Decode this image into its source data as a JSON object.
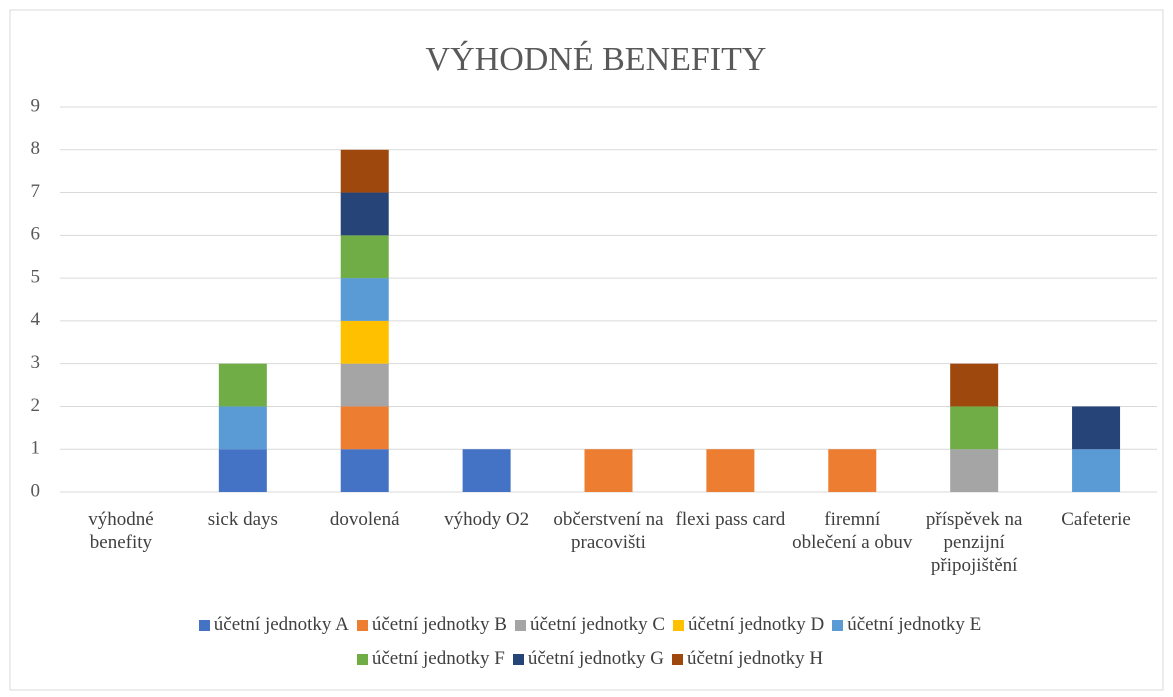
{
  "chart_data": {
    "type": "stacked_bar",
    "title": "VÝHODNÉ BENEFITY",
    "categories": [
      "výhodné benefity",
      "sick days",
      "dovolená",
      "výhody O2",
      "občerstvení na pracovišti",
      "flexi pass card",
      "firemní oblečení a obuv",
      "příspěvek na penzijní připojištění",
      "Cafeterie"
    ],
    "series": [
      {
        "name": "účetní jednotky A",
        "color": "#4472c4",
        "values": [
          0,
          1,
          1,
          1,
          0,
          0,
          0,
          0,
          0
        ]
      },
      {
        "name": "účetní jednotky B",
        "color": "#ed7d31",
        "values": [
          0,
          0,
          1,
          0,
          1,
          1,
          1,
          0,
          0
        ]
      },
      {
        "name": "účetní jednotky C",
        "color": "#a5a5a5",
        "values": [
          0,
          0,
          1,
          0,
          0,
          0,
          0,
          1,
          0
        ]
      },
      {
        "name": "účetní jednotky D",
        "color": "#ffc000",
        "values": [
          0,
          0,
          1,
          0,
          0,
          0,
          0,
          0,
          0
        ]
      },
      {
        "name": "účetní jednotky E",
        "color": "#5b9bd5",
        "values": [
          0,
          1,
          1,
          0,
          0,
          0,
          0,
          0,
          1
        ]
      },
      {
        "name": "účetní jednotky F",
        "color": "#70ad47",
        "values": [
          0,
          1,
          1,
          0,
          0,
          0,
          0,
          1,
          0
        ]
      },
      {
        "name": "účetní jednotky G",
        "color": "#264478",
        "values": [
          0,
          0,
          1,
          0,
          0,
          0,
          0,
          0,
          1
        ]
      },
      {
        "name": "účetní jednotky H",
        "color": "#9e480e",
        "values": [
          0,
          0,
          1,
          0,
          0,
          0,
          0,
          1,
          0
        ]
      }
    ],
    "ylim": [
      0,
      9
    ],
    "yticks": [
      0,
      1,
      2,
      3,
      4,
      5,
      6,
      7,
      8,
      9
    ],
    "grid": true,
    "legend": "bottom"
  }
}
